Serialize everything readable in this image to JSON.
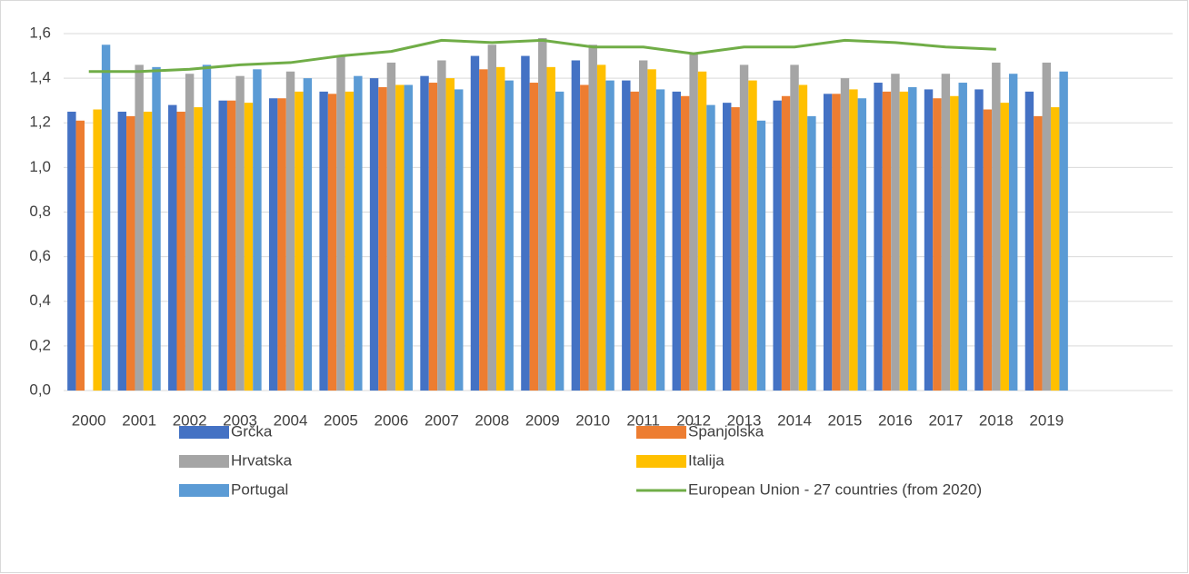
{
  "chart_data": {
    "type": "bar",
    "categories": [
      "2000",
      "2001",
      "2002",
      "2003",
      "2004",
      "2005",
      "2006",
      "2007",
      "2008",
      "2009",
      "2010",
      "2011",
      "2012",
      "2013",
      "2014",
      "2015",
      "2016",
      "2017",
      "2018",
      "2019"
    ],
    "series": [
      {
        "name": "Grčka",
        "color": "#4472c4",
        "type": "bar",
        "values": [
          1.25,
          1.25,
          1.28,
          1.3,
          1.31,
          1.34,
          1.4,
          1.41,
          1.5,
          1.5,
          1.48,
          1.39,
          1.34,
          1.29,
          1.3,
          1.33,
          1.38,
          1.35,
          1.35,
          1.34
        ]
      },
      {
        "name": "Španjolska",
        "color": "#ed7d31",
        "type": "bar",
        "values": [
          1.21,
          1.23,
          1.25,
          1.3,
          1.31,
          1.33,
          1.36,
          1.38,
          1.44,
          1.38,
          1.37,
          1.34,
          1.32,
          1.27,
          1.32,
          1.33,
          1.34,
          1.31,
          1.26,
          1.23
        ]
      },
      {
        "name": "Hrvatska",
        "color": "#a5a5a5",
        "type": "bar",
        "values": [
          null,
          1.46,
          1.42,
          1.41,
          1.43,
          1.5,
          1.47,
          1.48,
          1.55,
          1.58,
          1.55,
          1.48,
          1.51,
          1.46,
          1.46,
          1.4,
          1.42,
          1.42,
          1.47,
          1.47
        ]
      },
      {
        "name": "Italija",
        "color": "#ffc000",
        "type": "bar",
        "values": [
          1.26,
          1.25,
          1.27,
          1.29,
          1.34,
          1.34,
          1.37,
          1.4,
          1.45,
          1.45,
          1.46,
          1.44,
          1.43,
          1.39,
          1.37,
          1.35,
          1.34,
          1.32,
          1.29,
          1.27
        ]
      },
      {
        "name": "Portugal",
        "color": "#5b9bd5",
        "type": "bar",
        "values": [
          1.55,
          1.45,
          1.46,
          1.44,
          1.4,
          1.41,
          1.37,
          1.35,
          1.39,
          1.34,
          1.39,
          1.35,
          1.28,
          1.21,
          1.23,
          1.31,
          1.36,
          1.38,
          1.42,
          1.43
        ]
      },
      {
        "name": "European Union - 27 countries (from 2020)",
        "color": "#70ad47",
        "type": "line",
        "values": [
          1.43,
          1.43,
          1.44,
          1.46,
          1.47,
          1.5,
          1.52,
          1.57,
          1.56,
          1.57,
          1.54,
          1.54,
          1.51,
          1.54,
          1.54,
          1.57,
          1.56,
          1.54,
          1.53,
          null
        ]
      }
    ],
    "ylim": [
      0,
      1.6
    ],
    "yticks": [
      {
        "value": 0,
        "label": "0,0"
      },
      {
        "value": 0.2,
        "label": "0,2"
      },
      {
        "value": 0.4,
        "label": "0,4"
      },
      {
        "value": 0.6,
        "label": "0,6"
      },
      {
        "value": 0.8,
        "label": "0,8"
      },
      {
        "value": 1.0,
        "label": "1,0"
      },
      {
        "value": 1.2,
        "label": "1,2"
      },
      {
        "value": 1.4,
        "label": "1,4"
      },
      {
        "value": 1.6,
        "label": "1,6"
      }
    ],
    "grid": true,
    "legend": "bottom"
  }
}
